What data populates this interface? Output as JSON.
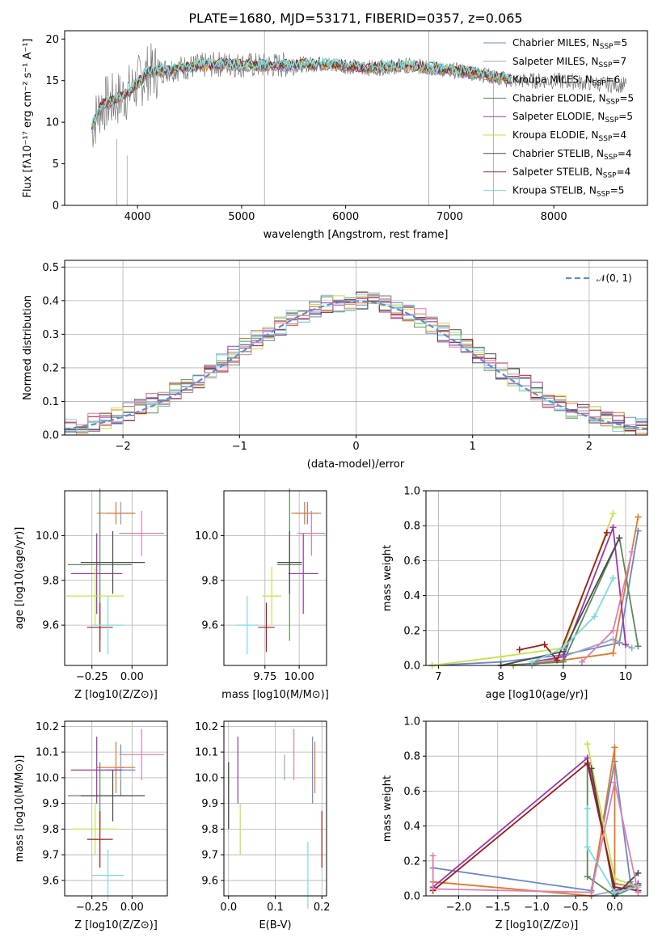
{
  "title": "PLATE=1680, MJD=53171, FIBERID=0357, z=0.065",
  "colors": [
    "#6a87c9",
    "#9aa6c4",
    "#e0782a",
    "#5b8a5b",
    "#9a38a8",
    "#c8e04a",
    "#4a4a4a",
    "#a01c1c",
    "#7bdcdc",
    "#e07fb0"
  ],
  "spectrum": {
    "xlabel": "wavelength [Angstrom, rest frame]",
    "ylabel": "Flux [fλ10⁻¹⁷ erg cm⁻² s⁻¹ A⁻¹]",
    "xlim": [
      3300,
      8900
    ],
    "ylim": [
      0,
      21
    ],
    "xticks": [
      "4000",
      "5000",
      "6000",
      "7000",
      "8000"
    ],
    "yticks": [
      "0",
      "5",
      "10",
      "15",
      "20"
    ],
    "continuum_anchors": [
      [
        3550,
        9
      ],
      [
        3650,
        12
      ],
      [
        3750,
        12.5
      ],
      [
        3850,
        13
      ],
      [
        3950,
        14
      ],
      [
        4100,
        16
      ],
      [
        4400,
        16.5
      ],
      [
        4800,
        17
      ],
      [
        5200,
        16.8
      ],
      [
        5800,
        17
      ],
      [
        6200,
        16.5
      ],
      [
        6600,
        16.8
      ],
      [
        7200,
        16
      ],
      [
        7600,
        15
      ],
      [
        8000,
        15
      ],
      [
        8600,
        14.5
      ]
    ],
    "legend": [
      {
        "label": "Chabrier MILES, N",
        "sub": "SSP",
        "suffix": "=5"
      },
      {
        "label": "Salpeter MILES, N",
        "sub": "SSP",
        "suffix": "=7"
      },
      {
        "label": "Kroupa MILES, N",
        "sub": "SSP",
        "suffix": "=6"
      },
      {
        "label": "Chabrier ELODIE, N",
        "sub": "SSP",
        "suffix": "=5"
      },
      {
        "label": "Salpeter ELODIE, N",
        "sub": "SSP",
        "suffix": "=5"
      },
      {
        "label": "Kroupa ELODIE, N",
        "sub": "SSP",
        "suffix": "=4"
      },
      {
        "label": "Chabrier STELIB, N",
        "sub": "SSP",
        "suffix": "=4"
      },
      {
        "label": "Salpeter STELIB, N",
        "sub": "SSP",
        "suffix": "=4"
      },
      {
        "label": "Kroupa STELIB, N",
        "sub": "SSP",
        "suffix": "=5"
      }
    ]
  },
  "chart_data": [
    {
      "type": "line",
      "title": "PLATE=1680, MJD=53171, FIBERID=0357, z=0.065",
      "xlabel": "wavelength [Angstrom, rest frame]",
      "ylabel": "Flux",
      "xlim": [
        3300,
        8900
      ],
      "ylim": [
        0,
        21
      ],
      "series_names": [
        "Chabrier MILES",
        "Salpeter MILES",
        "Kroupa MILES",
        "Chabrier ELODIE",
        "Salpeter ELODIE",
        "Kroupa ELODIE",
        "Chabrier STELIB",
        "Salpeter STELIB",
        "Kroupa STELIB"
      ],
      "legend": "upper right",
      "grid": false
    },
    {
      "type": "bar",
      "xlabel": "(data-model)/error",
      "ylabel": "Normed distribution",
      "xlim": [
        -2.5,
        2.5
      ],
      "ylim": [
        0,
        0.52
      ],
      "xticks": [
        "−2",
        "−1",
        "0",
        "1",
        "2"
      ],
      "yticks": [
        "0.0",
        "0.1",
        "0.2",
        "0.3",
        "0.4",
        "0.5"
      ],
      "reference_curve": "𝒩(0, 1)",
      "bin_width": 0.1,
      "grid": true,
      "legend": "upper right"
    },
    {
      "type": "scatter",
      "xlabel": "Z [log10(Z/Z⊙)]",
      "ylabel": "age [log10(age/yr)]",
      "xlim": [
        -0.42,
        0.22
      ],
      "ylim": [
        9.42,
        10.2
      ],
      "xticks": [
        "−0.25",
        "0.00"
      ],
      "yticks": [
        "9.6",
        "9.8",
        "10.0"
      ],
      "points": [
        {
          "x": -0.07,
          "y": 10.1,
          "xerr": 0.09,
          "yerr": 0.05
        },
        {
          "x": -0.07,
          "y": 10.1,
          "xerr": 0.02,
          "yerr": 0.05
        },
        {
          "x": -0.1,
          "y": 10.1,
          "xerr": 0.12,
          "yerr": 0.05
        },
        {
          "x": -0.2,
          "y": 9.87,
          "xerr": 0.2,
          "yerr": 0.34
        },
        {
          "x": -0.22,
          "y": 9.83,
          "xerr": 0.16,
          "yerr": 0.18
        },
        {
          "x": -0.23,
          "y": 9.73,
          "xerr": 0.18,
          "yerr": 0.13
        },
        {
          "x": -0.12,
          "y": 9.88,
          "xerr": 0.2,
          "yerr": 0.14
        },
        {
          "x": -0.2,
          "y": 9.59,
          "xerr": 0.08,
          "yerr": 0.11
        },
        {
          "x": -0.15,
          "y": 9.6,
          "xerr": 0.1,
          "yerr": 0.13
        },
        {
          "x": 0.06,
          "y": 10.01,
          "xerr": 0.14,
          "yerr": 0.1
        }
      ]
    },
    {
      "type": "scatter",
      "xlabel": "mass [log10(M/M⊙)]",
      "ylabel": "age [log10(age/yr)]",
      "xlim": [
        9.45,
        10.2
      ],
      "ylim": [
        9.42,
        10.2
      ],
      "xticks": [
        "9.75",
        "10.00"
      ],
      "yticks": [
        "9.6",
        "9.8",
        "10.0"
      ],
      "points": [
        {
          "x": 10.06,
          "y": 10.1,
          "xerr": 0.1,
          "yerr": 0.05
        },
        {
          "x": 10.04,
          "y": 10.1,
          "xerr": 0.06,
          "yerr": 0.05
        },
        {
          "x": 10.04,
          "y": 10.1,
          "xerr": 0.1,
          "yerr": 0.05
        },
        {
          "x": 9.93,
          "y": 9.87,
          "xerr": 0.09,
          "yerr": 0.34
        },
        {
          "x": 10.03,
          "y": 9.83,
          "xerr": 0.11,
          "yerr": 0.18
        },
        {
          "x": 9.8,
          "y": 9.73,
          "xerr": 0.07,
          "yerr": 0.13
        },
        {
          "x": 9.93,
          "y": 9.88,
          "xerr": 0.09,
          "yerr": 0.14
        },
        {
          "x": 9.76,
          "y": 9.59,
          "xerr": 0.06,
          "yerr": 0.11
        },
        {
          "x": 9.62,
          "y": 9.6,
          "xerr": 0.08,
          "yerr": 0.13
        },
        {
          "x": 10.09,
          "y": 10.01,
          "xerr": 0.1,
          "yerr": 0.1
        }
      ]
    },
    {
      "type": "line",
      "xlabel": "age [log10(age/yr)]",
      "ylabel": "mass weight",
      "xlim": [
        6.8,
        10.35
      ],
      "ylim": [
        0,
        1.0
      ],
      "xticks": [
        "7",
        "8",
        "9",
        "10"
      ],
      "yticks": [
        "0.0",
        "0.2",
        "0.4",
        "0.6",
        "0.8",
        "1.0"
      ],
      "series": [
        {
          "points": [
            [
              6.9,
              0.0
            ],
            [
              8.0,
              0.02
            ],
            [
              9.0,
              0.06
            ],
            [
              9.9,
              0.13
            ],
            [
              10.2,
              0.77
            ]
          ]
        },
        {
          "points": [
            [
              8.5,
              0.0
            ],
            [
              9.0,
              0.05
            ],
            [
              9.8,
              0.15
            ],
            [
              10.1,
              0.1
            ]
          ]
        },
        {
          "points": [
            [
              8.2,
              0.0
            ],
            [
              9.0,
              0.03
            ],
            [
              9.8,
              0.07
            ],
            [
              10.2,
              0.85
            ]
          ]
        },
        {
          "points": [
            [
              8.0,
              0.0
            ],
            [
              9.0,
              0.02
            ],
            [
              9.9,
              0.73
            ],
            [
              10.2,
              0.11
            ]
          ]
        },
        {
          "points": [
            [
              8.5,
              0.02
            ],
            [
              9.0,
              0.05
            ],
            [
              9.8,
              0.79
            ],
            [
              10.0,
              0.12
            ]
          ]
        },
        {
          "points": [
            [
              6.9,
              0.0
            ],
            [
              8.0,
              0.05
            ],
            [
              9.0,
              0.1
            ],
            [
              9.8,
              0.87
            ]
          ]
        },
        {
          "points": [
            [
              8.0,
              0.0
            ],
            [
              9.0,
              0.08
            ],
            [
              9.9,
              0.73
            ]
          ]
        },
        {
          "points": [
            [
              8.3,
              0.09
            ],
            [
              8.7,
              0.12
            ],
            [
              8.9,
              0.03
            ],
            [
              9.7,
              0.76
            ]
          ]
        },
        {
          "points": [
            [
              8.5,
              0.02
            ],
            [
              9.0,
              0.1
            ],
            [
              9.5,
              0.28
            ],
            [
              9.8,
              0.5
            ]
          ]
        },
        {
          "points": [
            [
              9.3,
              0.02
            ],
            [
              9.8,
              0.2
            ],
            [
              10.1,
              0.65
            ]
          ]
        }
      ]
    },
    {
      "type": "scatter",
      "xlabel": "Z [log10(Z/Z⊙)]",
      "ylabel": "mass [log10(M/M⊙)]",
      "xlim": [
        -0.42,
        0.22
      ],
      "ylim": [
        9.54,
        10.22
      ],
      "xticks": [
        "−0.25",
        "0.00"
      ],
      "yticks": [
        "9.6",
        "9.7",
        "9.8",
        "9.9",
        "10.0",
        "10.1",
        "10.2"
      ],
      "points": [
        {
          "x": -0.07,
          "y": 10.03,
          "xerr": 0.09,
          "yerr": 0.1
        },
        {
          "x": -0.07,
          "y": 10.04,
          "xerr": 0.02,
          "yerr": 0.05
        },
        {
          "x": -0.1,
          "y": 10.04,
          "xerr": 0.12,
          "yerr": 0.1
        },
        {
          "x": -0.2,
          "y": 9.93,
          "xerr": 0.2,
          "yerr": 0.13
        },
        {
          "x": -0.22,
          "y": 10.03,
          "xerr": 0.16,
          "yerr": 0.13
        },
        {
          "x": -0.23,
          "y": 9.8,
          "xerr": 0.14,
          "yerr": 0.1
        },
        {
          "x": -0.12,
          "y": 9.93,
          "xerr": 0.2,
          "yerr": 0.1
        },
        {
          "x": -0.2,
          "y": 9.76,
          "xerr": 0.08,
          "yerr": 0.11
        },
        {
          "x": -0.15,
          "y": 9.62,
          "xerr": 0.1,
          "yerr": 0.1
        },
        {
          "x": 0.06,
          "y": 10.09,
          "xerr": 0.14,
          "yerr": 0.1
        }
      ]
    },
    {
      "type": "scatter",
      "xlabel": "E(B-V)",
      "ylabel": "mass [log10(M/M⊙)]",
      "xlim": [
        -0.01,
        0.21
      ],
      "ylim": [
        9.54,
        10.22
      ],
      "xticks": [
        "0.0",
        "0.1",
        "0.2"
      ],
      "yticks": [
        "9.6",
        "9.7",
        "9.8",
        "9.9",
        "10.0",
        "10.1",
        "10.2"
      ],
      "points": [
        {
          "x": 0.18,
          "y": 10.03,
          "yerr": 0.13
        },
        {
          "x": 0.12,
          "y": 10.04,
          "yerr": 0.05
        },
        {
          "x": 0.185,
          "y": 10.04,
          "yerr": 0.1
        },
        {
          "x": 0.0,
          "y": 9.93,
          "yerr": 0.13
        },
        {
          "x": 0.02,
          "y": 10.03,
          "yerr": 0.13
        },
        {
          "x": 0.025,
          "y": 9.8,
          "yerr": 0.1
        },
        {
          "x": 0.0,
          "y": 9.93,
          "yerr": 0.13
        },
        {
          "x": 0.2,
          "y": 9.76,
          "yerr": 0.11
        },
        {
          "x": 0.17,
          "y": 9.62,
          "yerr": 0.13
        },
        {
          "x": 0.14,
          "y": 10.09,
          "yerr": 0.1
        }
      ]
    },
    {
      "type": "line",
      "xlabel": "Z [log10(Z/Z⊙)]",
      "ylabel": "mass weight",
      "xlim": [
        -2.42,
        0.42
      ],
      "ylim": [
        0,
        1.0
      ],
      "xticks": [
        "−2.0",
        "−1.5",
        "−1.0",
        "−0.5",
        "0.0"
      ],
      "yticks": [
        "0.0",
        "0.2",
        "0.4",
        "0.6",
        "0.8",
        "1.0"
      ],
      "series": [
        {
          "points": [
            [
              -2.33,
              0.16
            ],
            [
              -0.3,
              0.03
            ],
            [
              0.0,
              0.77
            ],
            [
              0.2,
              0.08
            ],
            [
              0.3,
              0.03
            ]
          ]
        },
        {
          "points": [
            [
              -0.3,
              0.0
            ],
            [
              0.0,
              0.03
            ],
            [
              0.3,
              0.06
            ]
          ]
        },
        {
          "points": [
            [
              -2.33,
              0.08
            ],
            [
              -0.3,
              0.0
            ],
            [
              0.0,
              0.85
            ],
            [
              0.0,
              0.07
            ],
            [
              0.3,
              0.05
            ]
          ]
        },
        {
          "points": [
            [
              -0.35,
              0.75
            ],
            [
              -0.35,
              0.11
            ],
            [
              0.0,
              0.0
            ],
            [
              0.3,
              0.06
            ]
          ]
        },
        {
          "points": [
            [
              -2.33,
              0.05
            ],
            [
              -0.35,
              0.79
            ],
            [
              0.0,
              0.03
            ],
            [
              0.3,
              0.07
            ]
          ]
        },
        {
          "points": [
            [
              -0.35,
              0.87
            ],
            [
              0.0,
              0.1
            ],
            [
              0.3,
              0.05
            ]
          ]
        },
        {
          "points": [
            [
              -0.3,
              0.73
            ],
            [
              0.0,
              0.0
            ],
            [
              0.3,
              0.13
            ]
          ]
        },
        {
          "points": [
            [
              -2.33,
              0.03
            ],
            [
              -0.35,
              0.76
            ],
            [
              0.0,
              0.05
            ],
            [
              0.3,
              0.03
            ]
          ]
        },
        {
          "points": [
            [
              -0.35,
              0.5
            ],
            [
              -0.35,
              0.28
            ],
            [
              0.0,
              0.02
            ],
            [
              0.3,
              0.05
            ]
          ]
        },
        {
          "points": [
            [
              -2.33,
              0.23
            ],
            [
              -2.33,
              0.04
            ],
            [
              -0.3,
              0.02
            ],
            [
              0.0,
              0.65
            ],
            [
              0.3,
              0.02
            ]
          ]
        }
      ]
    }
  ]
}
